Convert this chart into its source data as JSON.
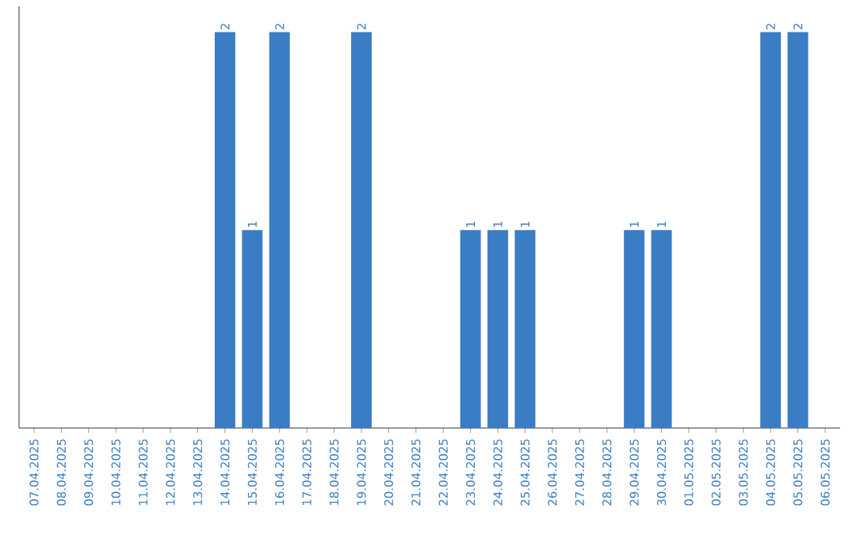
{
  "chart_data": {
    "type": "bar",
    "categories": [
      "07.04.2025",
      "08.04.2025",
      "09.04.2025",
      "10.04.2025",
      "11.04.2025",
      "12.04.2025",
      "13.04.2025",
      "14.04.2025",
      "15.04.2025",
      "16.04.2025",
      "17.04.2025",
      "18.04.2025",
      "19.04.2025",
      "20.04.2025",
      "21.04.2025",
      "22.04.2025",
      "23.04.2025",
      "24.04.2025",
      "25.04.2025",
      "26.04.2025",
      "27.04.2025",
      "28.04.2025",
      "29.04.2025",
      "30.04.2025",
      "01.05.2025",
      "02.05.2025",
      "03.05.2025",
      "04.05.2025",
      "05.05.2025",
      "06.05.2025"
    ],
    "values": [
      0,
      0,
      0,
      0,
      0,
      0,
      0,
      2,
      1,
      2,
      0,
      0,
      2,
      0,
      0,
      0,
      1,
      1,
      1,
      0,
      0,
      0,
      1,
      1,
      0,
      0,
      0,
      2,
      2,
      0
    ],
    "value_labels": [
      null,
      null,
      null,
      null,
      null,
      null,
      null,
      "2",
      "1",
      "2",
      null,
      null,
      "2",
      null,
      null,
      null,
      "1",
      "1",
      "1",
      null,
      null,
      null,
      "1",
      "1",
      null,
      null,
      null,
      "2",
      "2",
      null
    ],
    "color": "#3b7dc4",
    "ylim": [
      0,
      2.13
    ],
    "tick_labels": "x"
  }
}
